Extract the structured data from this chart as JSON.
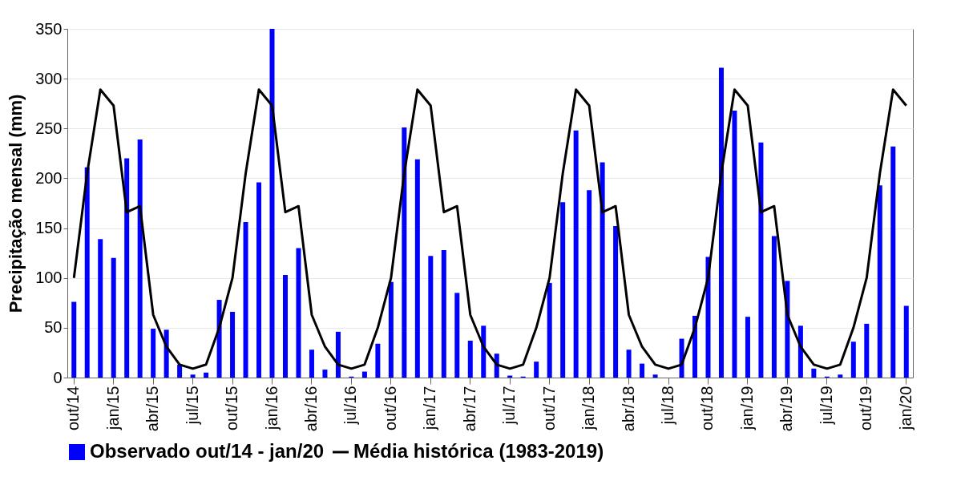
{
  "chart_data": {
    "type": "bar",
    "ylabel": "Precipitação  mensal (mm)",
    "categories": [
      "out/14",
      null,
      null,
      "jan/15",
      null,
      null,
      "abr/15",
      null,
      null,
      "jul/15",
      null,
      null,
      "out/15",
      null,
      null,
      "jan/16",
      null,
      null,
      "abr/16",
      null,
      null,
      "jul/16",
      null,
      null,
      "out/16",
      null,
      null,
      "jan/17",
      null,
      null,
      "abr/17",
      null,
      null,
      "jul/17",
      null,
      null,
      "out/17",
      null,
      null,
      "jan/18",
      null,
      null,
      "abr/18",
      null,
      null,
      "jul/18",
      null,
      null,
      "out/18",
      null,
      null,
      "jan/19",
      null,
      null,
      "abr/19",
      null,
      null,
      "jul/19",
      null,
      null,
      "out/19",
      null,
      null,
      "jan/20"
    ],
    "series": [
      {
        "name": "Observado out/14 - jan/20",
        "color": "#0000ff",
        "values": [
          76,
          211,
          139,
          120,
          220,
          239,
          49,
          48,
          13,
          3,
          5,
          78,
          66,
          156,
          196,
          350,
          103,
          130,
          28,
          8,
          46,
          1,
          6,
          34,
          96,
          251,
          219,
          122,
          128,
          85,
          37,
          52,
          24,
          2,
          1,
          16,
          95,
          176,
          248,
          188,
          216,
          152,
          28,
          14,
          3,
          0,
          39,
          62,
          121,
          311,
          268,
          61,
          236,
          142,
          97,
          52,
          9,
          1,
          3,
          36,
          54,
          193,
          232,
          72
        ]
      },
      {
        "name": "Média histórica (1983-2019)",
        "type": "line",
        "color": "#000000",
        "values": [
          100,
          205,
          289,
          273,
          166,
          172,
          63,
          31,
          13,
          9,
          13,
          50,
          100,
          205,
          289,
          273,
          166,
          172,
          63,
          31,
          13,
          9,
          13,
          50,
          100,
          205,
          289,
          273,
          166,
          172,
          63,
          31,
          13,
          9,
          13,
          50,
          100,
          205,
          289,
          273,
          166,
          172,
          63,
          31,
          13,
          9,
          13,
          50,
          100,
          205,
          289,
          273,
          166,
          172,
          63,
          31,
          13,
          9,
          13,
          50,
          100,
          205,
          289,
          273
        ]
      }
    ],
    "ylim": [
      0,
      350
    ],
    "yticks": [
      0,
      50,
      100,
      150,
      200,
      250,
      300,
      350
    ],
    "grid": "y",
    "legend": "bottom",
    "line_style": "solid"
  }
}
